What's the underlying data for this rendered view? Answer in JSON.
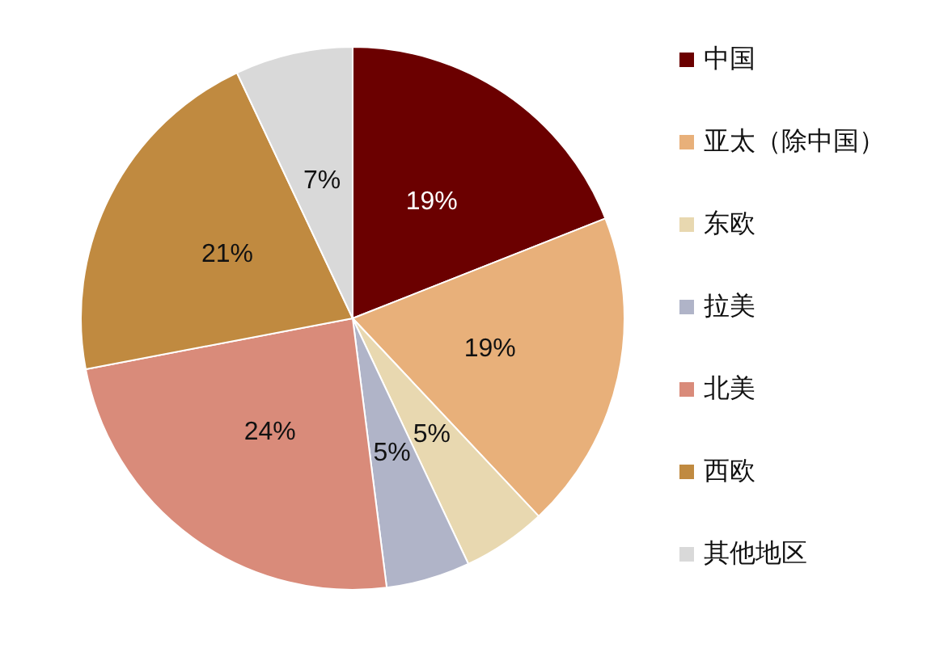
{
  "chart_data": {
    "type": "pie",
    "categories": [
      "中国",
      "亚太（除中国）",
      "东欧",
      "拉美",
      "北美",
      "西欧",
      "其他地区"
    ],
    "values": [
      19,
      19,
      5,
      5,
      24,
      21,
      7
    ],
    "colors": [
      "#6b0000",
      "#e8b07a",
      "#e8d8b0",
      "#b0b4c8",
      "#d98b7a",
      "#c08a40",
      "#d9d9d9"
    ],
    "value_labels": [
      "19%",
      "19%",
      "5%",
      "5%",
      "24%",
      "21%",
      "7%"
    ],
    "legend": "right"
  }
}
